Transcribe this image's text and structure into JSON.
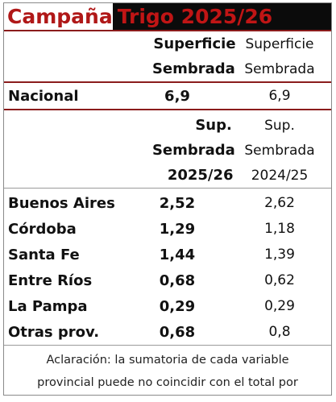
{
  "title": {
    "left": "Campaña",
    "right": "Trigo 2025/26"
  },
  "header1": {
    "cur_line1": "Superficie",
    "cur_line2": "Sembrada",
    "prev_line1": "Superficie",
    "prev_line2": "Sembrada"
  },
  "national": {
    "label": "Nacional",
    "cur": "6,9",
    "prev": "6,9"
  },
  "header2": {
    "cur_line1": "Sup.",
    "cur_line2": "Sembrada",
    "cur_line3": "2025/26",
    "prev_line1": "Sup.",
    "prev_line2": "Sembrada",
    "prev_line3": "2024/25"
  },
  "provinces": [
    {
      "label": "Buenos Aires",
      "cur": "2,52",
      "prev": "2,62"
    },
    {
      "label": "Córdoba",
      "cur": "1,29",
      "prev": "1,18"
    },
    {
      "label": "Santa Fe",
      "cur": "1,44",
      "prev": "1,39"
    },
    {
      "label": "Entre Ríos",
      "cur": "0,68",
      "prev": "0,62"
    },
    {
      "label": "La Pampa",
      "cur": "0,29",
      "prev": "0,29"
    },
    {
      "label": "Otras prov.",
      "cur": "0,68",
      "prev": "0,8"
    }
  ],
  "note": {
    "line1": "Aclaración: la sumatoria de cada variable",
    "line2": "provincial puede no coincidir con el total por"
  },
  "colors": {
    "accent_red": "#b01818",
    "title_bg": "#0b0b0b",
    "rule": "#8b1c1c"
  }
}
